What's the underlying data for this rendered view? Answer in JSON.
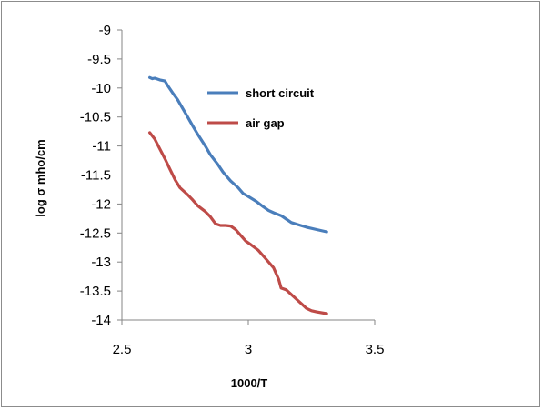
{
  "chart_data": {
    "type": "line",
    "title": "",
    "xlabel": "1000/T",
    "ylabel": "log σ mho/cm",
    "xlim": [
      2.5,
      3.5
    ],
    "ylim": [
      -14,
      -9
    ],
    "xticks": [
      "2.5",
      "3",
      "3.5"
    ],
    "xtick_values": [
      2.5,
      3,
      3.5
    ],
    "yticks": [
      "-9",
      "-9.5",
      "-10",
      "-10.5",
      "-11",
      "-11.5",
      "-12",
      "-12.5",
      "-13",
      "-13.5",
      "-14"
    ],
    "ytick_values": [
      -9,
      -9.5,
      -10,
      -10.5,
      -11,
      -11.5,
      -12,
      -12.5,
      -13,
      -13.5,
      -14
    ],
    "grid": false,
    "legend_position": "top-right",
    "series": [
      {
        "name": "short circuit",
        "color": "#4a7ebb",
        "x": [
          2.61,
          2.62,
          2.63,
          2.65,
          2.67,
          2.68,
          2.7,
          2.72,
          2.74,
          2.76,
          2.78,
          2.8,
          2.83,
          2.85,
          2.88,
          2.9,
          2.93,
          2.96,
          2.98,
          3.0,
          3.03,
          3.06,
          3.08,
          3.1,
          3.13,
          3.15,
          3.17,
          3.2,
          3.23,
          3.27,
          3.31
        ],
        "y": [
          -9.82,
          -9.84,
          -9.83,
          -9.86,
          -9.88,
          -9.95,
          -10.08,
          -10.2,
          -10.35,
          -10.5,
          -10.65,
          -10.8,
          -11.0,
          -11.15,
          -11.32,
          -11.45,
          -11.6,
          -11.72,
          -11.82,
          -11.87,
          -11.95,
          -12.05,
          -12.11,
          -12.15,
          -12.2,
          -12.26,
          -12.32,
          -12.36,
          -12.4,
          -12.44,
          -12.48
        ]
      },
      {
        "name": "air gap",
        "color": "#be4b48",
        "x": [
          2.61,
          2.63,
          2.65,
          2.67,
          2.69,
          2.71,
          2.73,
          2.76,
          2.78,
          2.8,
          2.83,
          2.85,
          2.87,
          2.89,
          2.91,
          2.93,
          2.95,
          2.97,
          2.99,
          3.01,
          3.04,
          3.07,
          3.1,
          3.12,
          3.13,
          3.15,
          3.17,
          3.19,
          3.21,
          3.23,
          3.25,
          3.27,
          3.31
        ],
        "y": [
          -10.77,
          -10.88,
          -11.05,
          -11.22,
          -11.4,
          -11.58,
          -11.72,
          -11.84,
          -11.93,
          -12.03,
          -12.13,
          -12.22,
          -12.34,
          -12.37,
          -12.37,
          -12.38,
          -12.44,
          -12.54,
          -12.64,
          -12.7,
          -12.8,
          -12.95,
          -13.1,
          -13.3,
          -13.45,
          -13.48,
          -13.56,
          -13.64,
          -13.72,
          -13.8,
          -13.84,
          -13.86,
          -13.89
        ]
      }
    ]
  }
}
